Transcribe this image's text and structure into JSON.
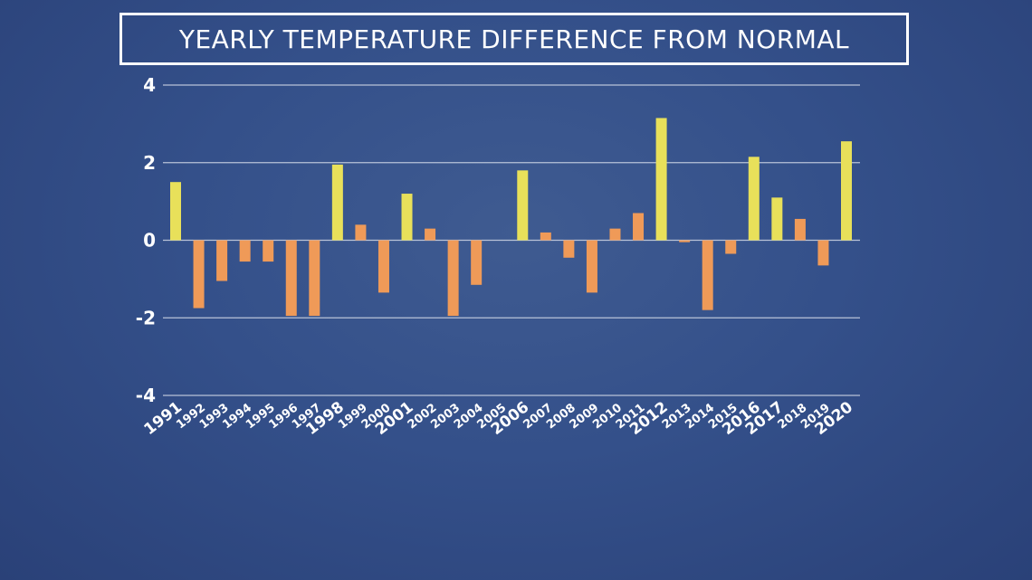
{
  "title": "YEARLY TEMPERATURE DIFFERENCE FROM NORMAL",
  "colors": {
    "warm_highlight": "#e8e05a",
    "normal_bar": "#ef9a58",
    "gridline": "#b9c3d8",
    "text": "#ffffff"
  },
  "chart_data": {
    "type": "bar",
    "title": "YEARLY TEMPERATURE DIFFERENCE FROM NORMAL",
    "xlabel": "",
    "ylabel": "",
    "ylim": [
      -4,
      4
    ],
    "yticks": [
      "4",
      "2",
      "0",
      "-2",
      "-4"
    ],
    "grid": true,
    "categories": [
      "1991",
      "1992",
      "1993",
      "1994",
      "1995",
      "1996",
      "1997",
      "1998",
      "1999",
      "2000",
      "2001",
      "2002",
      "2003",
      "2004",
      "2005",
      "2006",
      "2007",
      "2008",
      "2009",
      "2010",
      "2011",
      "2012",
      "2013",
      "2014",
      "2015",
      "2016",
      "2017",
      "2018",
      "2019",
      "2020"
    ],
    "values": [
      1.5,
      -1.75,
      -1.05,
      -0.55,
      -0.55,
      -1.95,
      -1.95,
      1.95,
      0.4,
      -1.35,
      1.2,
      0.3,
      -1.95,
      -1.15,
      0,
      1.8,
      0.2,
      -0.45,
      -1.35,
      0.3,
      0.7,
      3.15,
      -0.05,
      -1.8,
      -0.35,
      2.15,
      1.1,
      0.55,
      -0.65,
      2.55
    ],
    "highlighted": [
      "1991",
      "1998",
      "2001",
      "2006",
      "2012",
      "2016",
      "2017",
      "2020"
    ]
  }
}
